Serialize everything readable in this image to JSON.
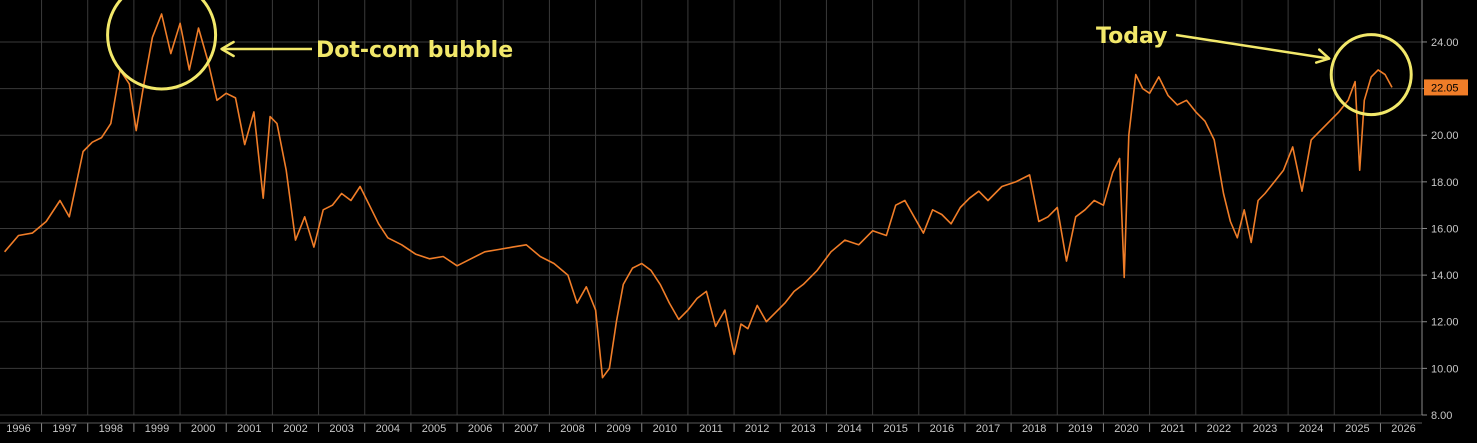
{
  "chart_data": {
    "type": "line",
    "title": "",
    "xlabel": "",
    "ylabel": "",
    "grid": true,
    "x_ticks": [
      "1996",
      "1997",
      "1998",
      "1999",
      "2000",
      "2001",
      "2002",
      "2003",
      "2004",
      "2005",
      "2006",
      "2007",
      "2008",
      "2009",
      "2010",
      "2011",
      "2012",
      "2013",
      "2014",
      "2015",
      "2016",
      "2017",
      "2018",
      "2019",
      "2020",
      "2021",
      "2022",
      "2023",
      "2024",
      "2025",
      "2026"
    ],
    "y_ticks": [
      "8.00",
      "10.00",
      "12.00",
      "14.00",
      "16.00",
      "18.00",
      "20.00",
      "22.00",
      "24.00"
    ],
    "xlim": [
      1995.6,
      2026.4
    ],
    "ylim": [
      8,
      25.8
    ],
    "last_value": "22.05",
    "series": [
      {
        "color": "#f07d28",
        "x": [
          1995.7,
          1996.0,
          1996.3,
          1996.6,
          1996.9,
          1997.1,
          1997.4,
          1997.6,
          1997.8,
          1998.0,
          1998.2,
          1998.4,
          1998.55,
          1998.7,
          1998.9,
          1999.1,
          1999.3,
          1999.5,
          1999.7,
          1999.9,
          2000.1,
          2000.3,
          2000.5,
          2000.7,
          2000.9,
          2001.1,
          2001.3,
          2001.45,
          2001.6,
          2001.8,
          2002.0,
          2002.2,
          2002.4,
          2002.6,
          2002.8,
          2003.0,
          2003.2,
          2003.4,
          2003.6,
          2003.8,
          2004.0,
          2004.3,
          2004.6,
          2004.9,
          2005.2,
          2005.5,
          2005.8,
          2006.1,
          2006.4,
          2006.7,
          2007.0,
          2007.3,
          2007.6,
          2007.9,
          2008.1,
          2008.3,
          2008.5,
          2008.65,
          2008.8,
          2008.95,
          2009.1,
          2009.3,
          2009.5,
          2009.7,
          2009.9,
          2010.1,
          2010.3,
          2010.5,
          2010.7,
          2010.9,
          2011.1,
          2011.3,
          2011.5,
          2011.65,
          2011.8,
          2012.0,
          2012.2,
          2012.4,
          2012.6,
          2012.8,
          2013.0,
          2013.3,
          2013.6,
          2013.9,
          2014.2,
          2014.5,
          2014.8,
          2015.0,
          2015.2,
          2015.4,
          2015.6,
          2015.8,
          2016.0,
          2016.2,
          2016.4,
          2016.6,
          2016.8,
          2017.0,
          2017.3,
          2017.6,
          2017.9,
          2018.1,
          2018.3,
          2018.5,
          2018.7,
          2018.9,
          2019.1,
          2019.3,
          2019.5,
          2019.7,
          2019.85,
          2019.95,
          2020.05,
          2020.2,
          2020.35,
          2020.5,
          2020.7,
          2020.9,
          2021.1,
          2021.3,
          2021.5,
          2021.7,
          2021.9,
          2022.1,
          2022.25,
          2022.4,
          2022.55,
          2022.7,
          2022.85,
          2023.0,
          2023.2,
          2023.4,
          2023.6,
          2023.8,
          2024.0,
          2024.2,
          2024.4,
          2024.6,
          2024.8,
          2024.95,
          2025.05,
          2025.15,
          2025.3,
          2025.45,
          2025.6,
          2025.75
        ],
        "y": [
          15.0,
          15.7,
          15.8,
          16.3,
          17.2,
          16.5,
          19.3,
          19.7,
          19.9,
          20.5,
          22.8,
          22.2,
          20.2,
          22.0,
          24.2,
          25.2,
          23.5,
          24.8,
          22.8,
          24.6,
          23.2,
          21.5,
          21.8,
          21.6,
          19.6,
          21.0,
          17.3,
          20.8,
          20.5,
          18.5,
          15.5,
          16.5,
          15.2,
          16.8,
          17.0,
          17.5,
          17.2,
          17.8,
          17.0,
          16.2,
          15.6,
          15.3,
          14.9,
          14.7,
          14.8,
          14.4,
          14.7,
          15.0,
          15.1,
          15.2,
          15.3,
          14.8,
          14.5,
          14.0,
          12.8,
          13.5,
          12.5,
          9.6,
          10.0,
          12.0,
          13.6,
          14.3,
          14.5,
          14.2,
          13.6,
          12.8,
          12.1,
          12.5,
          13.0,
          13.3,
          11.8,
          12.5,
          10.6,
          11.9,
          11.7,
          12.7,
          12.0,
          12.4,
          12.8,
          13.3,
          13.6,
          14.2,
          15.0,
          15.5,
          15.3,
          15.9,
          15.7,
          17.0,
          17.2,
          16.5,
          15.8,
          16.8,
          16.6,
          16.2,
          16.9,
          17.3,
          17.6,
          17.2,
          17.8,
          18.0,
          18.3,
          16.3,
          16.5,
          16.9,
          14.6,
          16.5,
          16.8,
          17.2,
          17.0,
          18.4,
          19.0,
          13.9,
          20.0,
          22.6,
          22.0,
          21.8,
          22.5,
          21.7,
          21.3,
          21.5,
          21.0,
          20.6,
          19.8,
          17.5,
          16.3,
          15.6,
          16.8,
          15.4,
          17.2,
          17.5,
          18.0,
          18.5,
          19.5,
          17.6,
          19.8,
          20.2,
          20.6,
          21.0,
          21.5,
          22.3,
          18.5,
          21.5,
          22.5,
          22.8,
          22.6,
          22.05
        ]
      }
    ],
    "annotations": [
      {
        "text": "Dot-com bubble",
        "x": 1999.1,
        "y": 24.3
      },
      {
        "text": "Today",
        "x": 2025.3,
        "y": 22.6
      }
    ],
    "accent_color": "#f2e86a"
  }
}
